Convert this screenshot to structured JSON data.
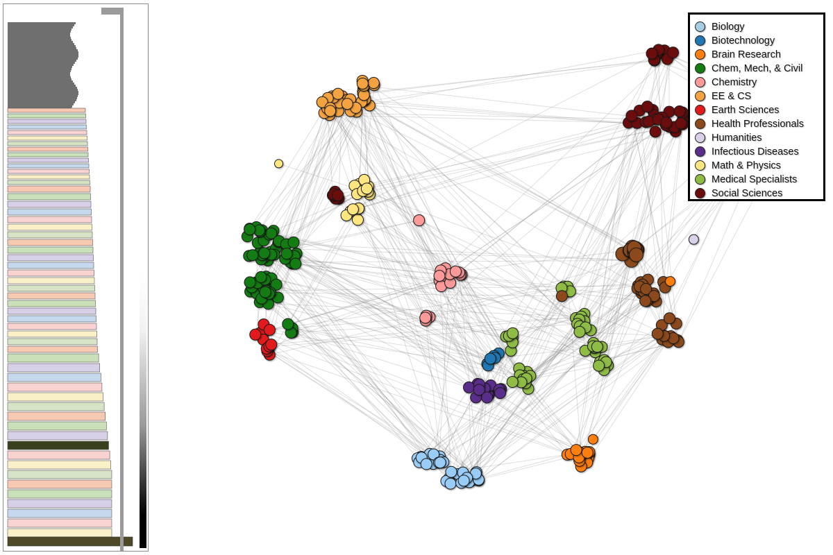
{
  "legend": {
    "items": [
      {
        "label": "Biology",
        "color": "#a6cee3"
      },
      {
        "label": "Biotechnology",
        "color": "#1f78b4"
      },
      {
        "label": "Brain Research",
        "color": "#ff7f0e"
      },
      {
        "label": "Chem, Mech, & Civil",
        "color": "#137d13"
      },
      {
        "label": "Chemistry",
        "color": "#fb9a99"
      },
      {
        "label": "EE & CS",
        "color": "#f4a340"
      },
      {
        "label": "Earth Sciences",
        "color": "#e31a1c"
      },
      {
        "label": "Health Professionals",
        "color": "#8c4a1c"
      },
      {
        "label": "Humanities",
        "color": "#dad0e8"
      },
      {
        "label": "Infectious Diseases",
        "color": "#5b2d8a"
      },
      {
        "label": "Math & Physics",
        "color": "#ffe680"
      },
      {
        "label": "Medical Specialists",
        "color": "#8fbc45"
      },
      {
        "label": "Social Sciences",
        "color": "#6b0d0d"
      }
    ]
  },
  "node_color": {
    "Biology": "#99ccf7"
  }
}
